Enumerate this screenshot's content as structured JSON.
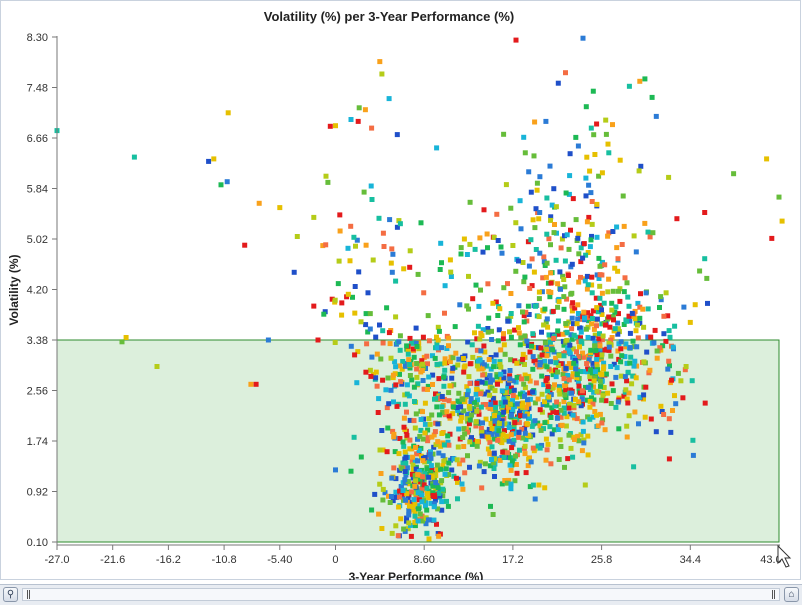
{
  "chart_data": {
    "type": "scatter",
    "title": "Volatility (%) per 3-Year Performance (%)",
    "xlabel": "3-Year Performance (%)",
    "ylabel": "Volatility (%)",
    "xlim": [
      -27.0,
      43.0
    ],
    "ylim": [
      0.1,
      8.3
    ],
    "x_ticks": [
      "-27.0",
      "-21.6",
      "-16.2",
      "-10.8",
      "-5.40",
      "0",
      "8.60",
      "17.2",
      "25.8",
      "34.4",
      "43.0"
    ],
    "x_tick_values": [
      -27.0,
      -21.6,
      -16.2,
      -10.8,
      -5.4,
      0,
      8.6,
      17.2,
      25.8,
      34.4,
      43.0
    ],
    "y_ticks": [
      "8.30",
      "7.48",
      "6.66",
      "5.84",
      "5.02",
      "4.20",
      "3.38",
      "2.56",
      "1.74",
      "0.92",
      "0.10"
    ],
    "y_tick_values": [
      8.3,
      7.48,
      6.66,
      5.84,
      5.02,
      4.2,
      3.38,
      2.56,
      1.74,
      0.92,
      0.1
    ],
    "highlight_region": {
      "x": [
        -27.0,
        43.0
      ],
      "y": [
        0.1,
        3.38
      ],
      "fill": "#dcefdc",
      "stroke": "#2e8b2e"
    },
    "grid": false,
    "legend": "none",
    "marker": "square",
    "palette": [
      "#e31a1c",
      "#f46d43",
      "#f9a11b",
      "#e6c000",
      "#b5cc18",
      "#66bd3a",
      "#1db954",
      "#17bfa0",
      "#18b4d8",
      "#2b7bd6",
      "#1f4fc9"
    ],
    "points": [
      [
        -27.0,
        6.78
      ],
      [
        -19.5,
        6.35
      ],
      [
        -20.3,
        3.42
      ],
      [
        -20.7,
        3.35
      ],
      [
        -17.3,
        2.95
      ],
      [
        -12.3,
        6.28
      ],
      [
        -11.8,
        6.32
      ],
      [
        -11.1,
        5.9
      ],
      [
        -10.5,
        5.95
      ],
      [
        -10.4,
        7.07
      ],
      [
        -8.8,
        4.92
      ],
      [
        -8.2,
        2.66
      ],
      [
        -7.7,
        2.66
      ],
      [
        -7.4,
        5.6
      ],
      [
        -6.5,
        3.38
      ],
      [
        -5.4,
        5.53
      ],
      [
        -4.0,
        4.48
      ],
      [
        -3.7,
        5.06
      ],
      [
        -2.1,
        5.37
      ],
      [
        -2.1,
        3.93
      ],
      [
        -1.7,
        3.38
      ],
      [
        -1.0,
        3.84
      ],
      [
        -0.5,
        6.85
      ],
      [
        0.0,
        6.86
      ],
      [
        1.5,
        6.96
      ],
      [
        2.2,
        6.93
      ],
      [
        2.3,
        7.15
      ],
      [
        2.9,
        7.12
      ],
      [
        3.5,
        6.82
      ],
      [
        4.3,
        7.9
      ],
      [
        4.5,
        7.7
      ],
      [
        5.2,
        7.3
      ],
      [
        6.0,
        5.21
      ],
      [
        7.2,
        4.56
      ],
      [
        9.8,
        6.5
      ],
      [
        10.2,
        4.95
      ],
      [
        11.2,
        3.1
      ],
      [
        12.5,
        5.02
      ],
      [
        13.3,
        4.05
      ],
      [
        13.7,
        3.4
      ],
      [
        15.3,
        5.05
      ],
      [
        16.3,
        6.72
      ],
      [
        17.0,
        5.52
      ],
      [
        17.5,
        8.25
      ],
      [
        18.4,
        6.42
      ],
      [
        19.3,
        6.92
      ],
      [
        19.6,
        5.45
      ],
      [
        20.4,
        6.93
      ],
      [
        21.6,
        7.55
      ],
      [
        22.3,
        7.72
      ],
      [
        22.7,
        6.05
      ],
      [
        23.3,
        6.67
      ],
      [
        24.0,
        8.28
      ],
      [
        24.8,
        6.82
      ],
      [
        25.0,
        7.42
      ],
      [
        26.2,
        6.95
      ],
      [
        26.5,
        6.42
      ],
      [
        27.6,
        6.3
      ],
      [
        28.5,
        7.5
      ],
      [
        29.5,
        7.58
      ],
      [
        29.6,
        6.2
      ],
      [
        30.0,
        7.62
      ],
      [
        30.7,
        7.32
      ],
      [
        31.1,
        7.01
      ],
      [
        32.3,
        6.02
      ],
      [
        33.1,
        5.35
      ],
      [
        35.8,
        5.45
      ],
      [
        35.3,
        4.5
      ],
      [
        35.8,
        4.7
      ],
      [
        36.0,
        4.38
      ],
      [
        38.6,
        6.08
      ],
      [
        41.8,
        6.32
      ],
      [
        42.3,
        5.03
      ],
      [
        43.0,
        5.7
      ],
      [
        43.3,
        5.31
      ],
      [
        26.5,
        5.12
      ],
      [
        27.8,
        4.93
      ],
      [
        24.5,
        4.8
      ],
      [
        22.0,
        5.02
      ],
      [
        20.2,
        4.73
      ],
      [
        18.8,
        4.58
      ],
      [
        1.5,
        1.25
      ],
      [
        0.0,
        1.27
      ],
      [
        1.8,
        1.8
      ],
      [
        2.5,
        1.48
      ],
      [
        3.5,
        0.62
      ],
      [
        4.5,
        0.32
      ],
      [
        5.5,
        0.24
      ],
      [
        6.2,
        0.2
      ],
      [
        4.8,
        0.9
      ],
      [
        7.3,
        0.74
      ],
      [
        8.4,
        0.52
      ]
    ],
    "clusters": [
      {
        "cx": 8.2,
        "cy": 1.05,
        "sx": 1.6,
        "sy": 0.45,
        "n": 300
      },
      {
        "cx": 8.0,
        "cy": 2.7,
        "sx": 2.4,
        "sy": 0.45,
        "n": 110
      },
      {
        "cx": 14.5,
        "cy": 2.15,
        "sx": 2.6,
        "sy": 0.55,
        "n": 240
      },
      {
        "cx": 17.3,
        "cy": 1.95,
        "sx": 1.6,
        "sy": 0.4,
        "n": 140
      },
      {
        "cx": 21.5,
        "cy": 2.75,
        "sx": 4.0,
        "sy": 0.65,
        "n": 380
      },
      {
        "cx": 25.0,
        "cy": 3.3,
        "sx": 3.0,
        "sy": 0.6,
        "n": 240
      },
      {
        "cx": 21.0,
        "cy": 4.3,
        "sx": 3.8,
        "sy": 0.75,
        "n": 150
      },
      {
        "cx": 23.0,
        "cy": 5.5,
        "sx": 3.8,
        "sy": 0.8,
        "n": 70
      },
      {
        "cx": 6.5,
        "cy": 3.1,
        "sx": 1.8,
        "sy": 0.35,
        "n": 60
      },
      {
        "cx": 2.5,
        "cy": 4.4,
        "sx": 2.5,
        "sy": 0.7,
        "n": 55
      },
      {
        "cx": 12.0,
        "cy": 3.0,
        "sx": 3.0,
        "sy": 1.1,
        "n": 70
      },
      {
        "cx": 30.0,
        "cy": 3.2,
        "sx": 2.6,
        "sy": 0.7,
        "n": 70
      }
    ]
  }
}
